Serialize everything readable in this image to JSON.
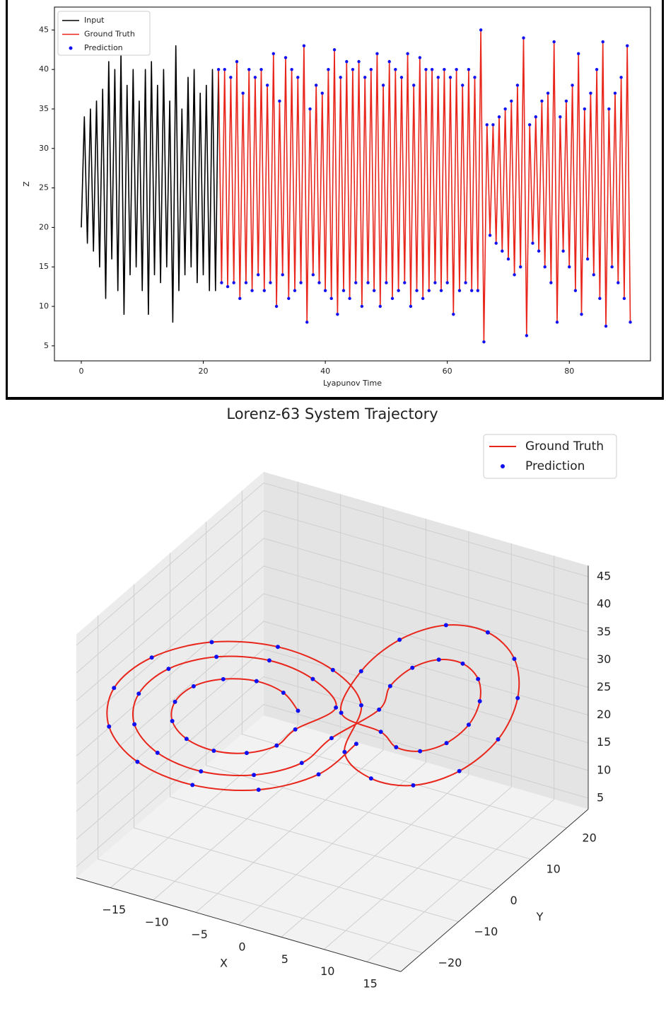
{
  "chart_data": [
    {
      "type": "line",
      "xlabel": "Lyapunov Time",
      "ylabel": "Z",
      "xlim": [
        -4.4,
        93.3
      ],
      "ylim": [
        3.1,
        47.9
      ],
      "xticks": [
        0,
        20,
        40,
        60,
        80
      ],
      "yticks": [
        5,
        10,
        15,
        20,
        25,
        30,
        35,
        40,
        45
      ],
      "grid": false,
      "legend": "upper left",
      "series": [
        {
          "name": "Input",
          "color": "#000000",
          "kind": "line",
          "x": [
            0,
            0.5,
            1,
            1.5,
            2,
            2.5,
            3,
            3.5,
            4,
            4.5,
            5,
            5.5,
            6,
            6.5,
            7,
            7.5,
            8,
            8.5,
            9,
            9.5,
            10,
            10.5,
            11,
            11.5,
            12,
            12.5,
            13,
            13.5,
            14,
            14.5,
            15,
            15.5,
            16,
            16.5,
            17,
            17.5,
            18,
            18.5,
            19,
            19.5,
            20,
            20.5,
            21,
            21.5,
            22,
            22.5
          ],
          "values": [
            20,
            34,
            18,
            35,
            17,
            36,
            15,
            37.5,
            11,
            41,
            16,
            40,
            12,
            42,
            9,
            38,
            14,
            40,
            15,
            36,
            12,
            40,
            9,
            41,
            14,
            38,
            13,
            40,
            15,
            36,
            8,
            43,
            12,
            35,
            14,
            39,
            15,
            40,
            13,
            37,
            14,
            38,
            12,
            40,
            12,
            40
          ]
        },
        {
          "name": "Ground Truth",
          "color": "#e8261c",
          "kind": "line",
          "x": [
            22.5,
            23,
            23.5,
            24,
            24.5,
            25,
            25.5,
            26,
            26.5,
            27,
            27.5,
            28,
            28.5,
            29,
            29.5,
            30,
            30.5,
            31,
            31.5,
            32,
            32.5,
            33,
            33.5,
            34,
            34.5,
            35,
            35.5,
            36,
            36.5,
            37,
            37.5,
            38,
            38.5,
            39,
            39.5,
            40,
            40.5,
            41,
            41.5,
            42,
            42.5,
            43,
            43.5,
            44,
            44.5,
            45,
            45.5,
            46,
            46.5,
            47,
            47.5,
            48,
            48.5,
            49,
            49.5,
            50,
            50.5,
            51,
            51.5,
            52,
            52.5,
            53,
            53.5,
            54,
            54.5,
            55,
            55.5,
            56,
            56.5,
            57,
            57.5,
            58,
            58.5,
            59,
            59.5,
            60,
            60.5,
            61,
            61.5,
            62,
            62.5,
            63,
            63.5,
            64,
            64.5,
            65,
            65.5,
            66,
            66.5,
            67,
            67.5,
            68,
            68.5,
            69,
            69.5,
            70,
            70.5,
            71,
            71.5,
            72,
            72.5,
            73,
            73.5,
            74,
            74.5,
            75,
            75.5,
            76,
            76.5,
            77,
            77.5,
            78,
            78.5,
            79,
            79.5,
            80,
            80.5,
            81,
            81.5,
            82,
            82.5,
            83,
            83.5,
            84,
            84.5,
            85,
            85.5,
            86,
            86.5,
            87,
            87.5,
            88,
            88.5,
            89,
            89.5,
            90
          ],
          "values": [
            40,
            13,
            40,
            12.5,
            39,
            13,
            41,
            11,
            37,
            13,
            40,
            12,
            39,
            14,
            40,
            12,
            38,
            13,
            42,
            10,
            36,
            14,
            41.5,
            11,
            40,
            12,
            39,
            13,
            43,
            8,
            35,
            14,
            38,
            13,
            37,
            12,
            40,
            11,
            42.5,
            9,
            39,
            12,
            41,
            11,
            40,
            13,
            41,
            10,
            39,
            13,
            40,
            12,
            42,
            10,
            38,
            13,
            41,
            11,
            40,
            12,
            39,
            13,
            42,
            10,
            38,
            12,
            41.5,
            11,
            40,
            12,
            40,
            13,
            39,
            12,
            40,
            13,
            39,
            9,
            40,
            12,
            38,
            13,
            40,
            12,
            39,
            12,
            45,
            5.5,
            33,
            19,
            33,
            18,
            34,
            17,
            35,
            16,
            36,
            14,
            38,
            15,
            44,
            6.3,
            33,
            18,
            34,
            17,
            36,
            15,
            37,
            13,
            43.5,
            8,
            34,
            17,
            36,
            15,
            38,
            12,
            42,
            9,
            35,
            16,
            37,
            14,
            40,
            11,
            43.5,
            7.5,
            35,
            15,
            37,
            13,
            39,
            11,
            43,
            8
          ]
        },
        {
          "name": "Prediction",
          "color": "#1010f0",
          "kind": "scatter",
          "x": [
            22.5,
            23,
            23.5,
            24,
            24.5,
            25,
            25.5,
            26,
            26.5,
            27,
            27.5,
            28,
            28.5,
            29,
            29.5,
            30,
            30.5,
            31,
            31.5,
            32,
            32.5,
            33,
            33.5,
            34,
            34.5,
            35,
            35.5,
            36,
            36.5,
            37,
            37.5,
            38,
            38.5,
            39,
            39.5,
            40,
            40.5,
            41,
            41.5,
            42,
            42.5,
            43,
            43.5,
            44,
            44.5,
            45,
            45.5,
            46,
            46.5,
            47,
            47.5,
            48,
            48.5,
            49,
            49.5,
            50,
            50.5,
            51,
            51.5,
            52,
            52.5,
            53,
            53.5,
            54,
            54.5,
            55,
            55.5,
            56,
            56.5,
            57,
            57.5,
            58,
            58.5,
            59,
            59.5,
            60,
            60.5,
            61,
            61.5,
            62,
            62.5,
            63,
            63.5,
            64,
            64.5,
            65,
            65.5,
            66,
            66.5,
            67,
            67.5,
            68,
            68.5,
            69,
            69.5,
            70,
            70.5,
            71,
            71.5,
            72,
            72.5,
            73,
            73.5,
            74,
            74.5,
            75,
            75.5,
            76,
            76.5,
            77,
            77.5,
            78,
            78.5,
            79,
            79.5,
            80,
            80.5,
            81,
            81.5,
            82,
            82.5,
            83,
            83.5,
            84,
            84.5,
            85,
            85.5,
            86,
            86.5,
            87,
            87.5,
            88,
            88.5,
            89,
            89.5,
            90
          ],
          "values": [
            40,
            13,
            40,
            12.5,
            39,
            13,
            41,
            11,
            37,
            13,
            40,
            12,
            39,
            14,
            40,
            12,
            38,
            13,
            42,
            10,
            36,
            14,
            41.5,
            11,
            40,
            12,
            39,
            13,
            43,
            8,
            35,
            14,
            38,
            13,
            37,
            12,
            40,
            11,
            42.5,
            9,
            39,
            12,
            41,
            11,
            40,
            13,
            41,
            10,
            39,
            13,
            40,
            12,
            42,
            10,
            38,
            13,
            41,
            11,
            40,
            12,
            39,
            13,
            42,
            10,
            38,
            12,
            41.5,
            11,
            40,
            12,
            40,
            13,
            39,
            12,
            40,
            13,
            39,
            9,
            40,
            12,
            38,
            13,
            40,
            12,
            39,
            12,
            45,
            5.5,
            33,
            19,
            33,
            18,
            34,
            17,
            35,
            16,
            36,
            14,
            38,
            15,
            44,
            6.3,
            33,
            18,
            34,
            17,
            36,
            15,
            37,
            13,
            43.5,
            8,
            34,
            17,
            36,
            15,
            38,
            12,
            42,
            9,
            35,
            16,
            37,
            14,
            40,
            11,
            43.5,
            7.5,
            35,
            15,
            37,
            13,
            39,
            11,
            43,
            8
          ]
        }
      ]
    },
    {
      "type": "line3d",
      "title": "Lorenz-63 System Trajectory",
      "xlabel": "X",
      "ylabel": "Y",
      "xlim": [
        -19,
        19
      ],
      "ylim": [
        -26,
        26
      ],
      "zlim": [
        3,
        47
      ],
      "xticks": [
        {
          "value": -15,
          "label": "−15"
        },
        {
          "value": -10,
          "label": "−10"
        },
        {
          "value": -5,
          "label": "−5"
        },
        0,
        5,
        10,
        15
      ],
      "yticks": [
        {
          "value": -20,
          "label": "−20"
        },
        {
          "value": -10,
          "label": "−10"
        },
        0,
        10,
        20
      ],
      "zticks": [
        5,
        10,
        15,
        20,
        25,
        30,
        35,
        40,
        45
      ],
      "grid": true,
      "legend": "upper right",
      "series": [
        {
          "name": "Ground Truth",
          "color": "#e8261c",
          "kind": "line",
          "x": [
            -3,
            -3.7,
            -5.5,
            -8,
            -10.5,
            -12.3,
            -13,
            -12.3,
            -10.5,
            -8,
            -5.5,
            -3.7,
            0,
            -1.1,
            -4,
            -8,
            -12,
            -14.9,
            -16,
            -14.9,
            -12,
            -8,
            -4,
            -1.1,
            4,
            4.5,
            6,
            8,
            10,
            11.5,
            12,
            11.5,
            10,
            8,
            6,
            4.5,
            1,
            1.9,
            4.5,
            8,
            11.5,
            14.1,
            15,
            14.1,
            11.5,
            8,
            4.5,
            1.9,
            2,
            0.7,
            -3,
            -8,
            -13,
            -16.7,
            -18,
            -16.7,
            -13,
            -8,
            -3,
            0.7
          ],
          "y": [
            -2.4,
            -4.8,
            -8,
            -11.3,
            -13.6,
            -14.5,
            -13.6,
            -11.3,
            -8,
            -4.8,
            -2.4,
            -1.5,
            1,
            -2.8,
            -8,
            -13.2,
            -17,
            -18.4,
            -17,
            -13.2,
            -8,
            -2.8,
            1,
            2.4,
            3.5,
            5.4,
            8,
            10.6,
            12.5,
            13.2,
            12.5,
            10.6,
            8,
            5.4,
            3.5,
            2.8,
            0.1,
            3.5,
            8,
            12.6,
            15.9,
            17.1,
            15.9,
            12.6,
            8,
            3.5,
            0.1,
            -1.1,
            3.3,
            -1.5,
            -8,
            -14.5,
            -19.3,
            -21,
            -19.3,
            -14.5,
            -8,
            -1.5,
            3.3,
            5
          ],
          "z": [
            27,
            31.3,
            34.4,
            35.5,
            34.4,
            31.3,
            27,
            22.8,
            19.6,
            18.5,
            19.6,
            22.8,
            27,
            33.8,
            38.8,
            40.6,
            38.8,
            33.8,
            27,
            20.2,
            15.2,
            13.4,
            15.2,
            20.2,
            27,
            30.4,
            32.9,
            33.8,
            32.9,
            30.4,
            27,
            23.6,
            21.1,
            20.2,
            21.1,
            23.6,
            27,
            33,
            37.3,
            38.9,
            37.3,
            33,
            27,
            21,
            16.7,
            15.1,
            16.7,
            21,
            27,
            35.5,
            41.7,
            44,
            41.7,
            35.5,
            27,
            18.5,
            12.3,
            10,
            12.3,
            18.5
          ]
        },
        {
          "name": "Prediction",
          "color": "#1010f0",
          "kind": "scatter",
          "x": [
            -3,
            -3.7,
            -5.5,
            -8,
            -10.5,
            -12.3,
            -13,
            -12.3,
            -10.5,
            -8,
            -5.5,
            -3.7,
            0,
            -1.1,
            -4,
            -8,
            -12,
            -14.9,
            -16,
            -14.9,
            -12,
            -8,
            -4,
            -1.1,
            4,
            4.5,
            6,
            8,
            10,
            11.5,
            12,
            11.5,
            10,
            8,
            6,
            4.5,
            1,
            1.9,
            4.5,
            8,
            11.5,
            14.1,
            15,
            14.1,
            11.5,
            8,
            4.5,
            1.9,
            2,
            0.7,
            -3,
            -8,
            -13,
            -16.7,
            -18,
            -16.7,
            -13,
            -8,
            -3,
            0.7
          ],
          "y": [
            -2.4,
            -4.8,
            -8,
            -11.3,
            -13.6,
            -14.5,
            -13.6,
            -11.3,
            -8,
            -4.8,
            -2.4,
            -1.5,
            1,
            -2.8,
            -8,
            -13.2,
            -17,
            -18.4,
            -17,
            -13.2,
            -8,
            -2.8,
            1,
            2.4,
            3.5,
            5.4,
            8,
            10.6,
            12.5,
            13.2,
            12.5,
            10.6,
            8,
            5.4,
            3.5,
            2.8,
            0.1,
            3.5,
            8,
            12.6,
            15.9,
            17.1,
            15.9,
            12.6,
            8,
            3.5,
            0.1,
            -1.1,
            3.3,
            -1.5,
            -8,
            -14.5,
            -19.3,
            -21,
            -19.3,
            -14.5,
            -8,
            -1.5,
            3.3,
            5
          ],
          "z": [
            27,
            31.3,
            34.4,
            35.5,
            34.4,
            31.3,
            27,
            22.8,
            19.6,
            18.5,
            19.6,
            22.8,
            27,
            33.8,
            38.8,
            40.6,
            38.8,
            33.8,
            27,
            20.2,
            15.2,
            13.4,
            15.2,
            20.2,
            27,
            30.4,
            32.9,
            33.8,
            32.9,
            30.4,
            27,
            23.6,
            21.1,
            20.2,
            21.1,
            23.6,
            27,
            33,
            37.3,
            38.9,
            37.3,
            33,
            27,
            21,
            16.7,
            15.1,
            16.7,
            21,
            27,
            35.5,
            41.7,
            44,
            41.7,
            35.5,
            27,
            18.5,
            12.3,
            10,
            12.3,
            18.5
          ]
        }
      ]
    }
  ]
}
